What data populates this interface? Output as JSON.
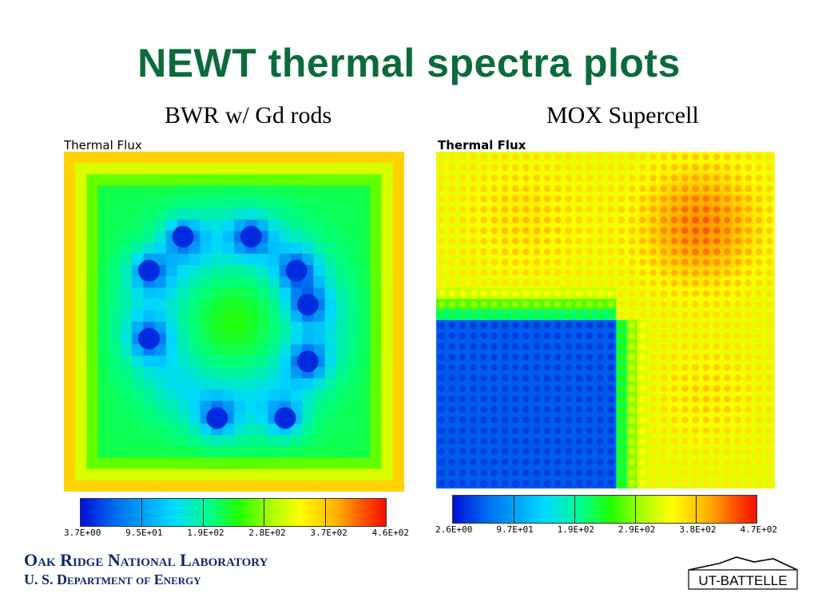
{
  "slide": {
    "title": "NEWT thermal spectra plots",
    "left_subtitle": "BWR w/ Gd rods",
    "right_subtitle": "MOX Supercell"
  },
  "left_panel": {
    "label": "Thermal Flux",
    "colorbar_ticks": [
      "3.7E+00",
      "9.5E+01",
      "1.9E+02",
      "2.8E+02",
      "3.7E+02",
      "4.6E+02"
    ]
  },
  "right_panel": {
    "label": "Thermal Flux",
    "colorbar_ticks": [
      "2.6E+00",
      "9.7E+01",
      "1.9E+02",
      "2.9E+02",
      "3.8E+02",
      "4.7E+02"
    ]
  },
  "footer": {
    "lab_name": "Oak Ridge National Laboratory",
    "department": "U. S. Department of Energy",
    "partner_logo_text": "UT-BATTELLE"
  },
  "colors": {
    "title": "#0b6b3a",
    "footer_text": "#0b2a6b",
    "colormap": [
      "#0010d8",
      "#00d8ff",
      "#20ff00",
      "#ffff00",
      "#ff5000",
      "#f01000"
    ]
  }
}
